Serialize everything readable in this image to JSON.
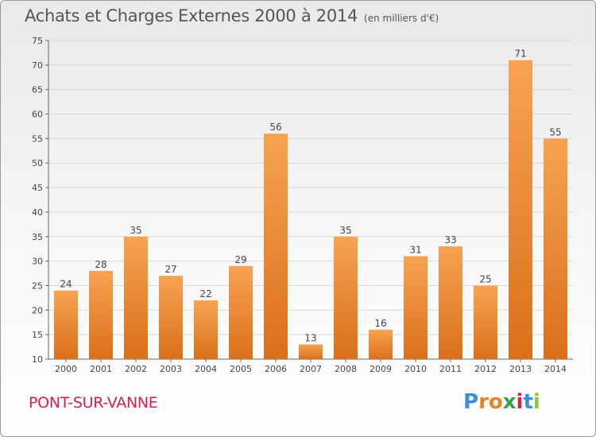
{
  "title": "Achats et Charges Externes 2000 à 2014",
  "unit_note": "(en milliers d'€)",
  "city": "PONT-SUR-VANNE",
  "logo": {
    "letters": [
      "P",
      "r",
      "o",
      "x",
      "i",
      "t",
      "i"
    ],
    "colors": [
      "#3a8fd6",
      "#e8832a",
      "#e8832a",
      "#3aa04a",
      "#d8204f",
      "#3a8fd6",
      "#8cc63f"
    ]
  },
  "colors": {
    "bar_top": "#f7a352",
    "bar_bottom": "#d9701b",
    "city": "#d8204f"
  },
  "chart_data": {
    "type": "bar",
    "title": "Achats et Charges Externes 2000 à 2014",
    "categories": [
      "2000",
      "2001",
      "2002",
      "2003",
      "2004",
      "2005",
      "2006",
      "2007",
      "2008",
      "2009",
      "2010",
      "2011",
      "2012",
      "2013",
      "2014"
    ],
    "values": [
      24,
      28,
      35,
      27,
      22,
      29,
      56,
      13,
      35,
      16,
      31,
      33,
      25,
      71,
      55
    ],
    "ylim": [
      10,
      75
    ],
    "yticks": [
      10,
      15,
      20,
      25,
      30,
      35,
      40,
      45,
      50,
      55,
      60,
      65,
      70,
      75
    ],
    "grid": true
  }
}
